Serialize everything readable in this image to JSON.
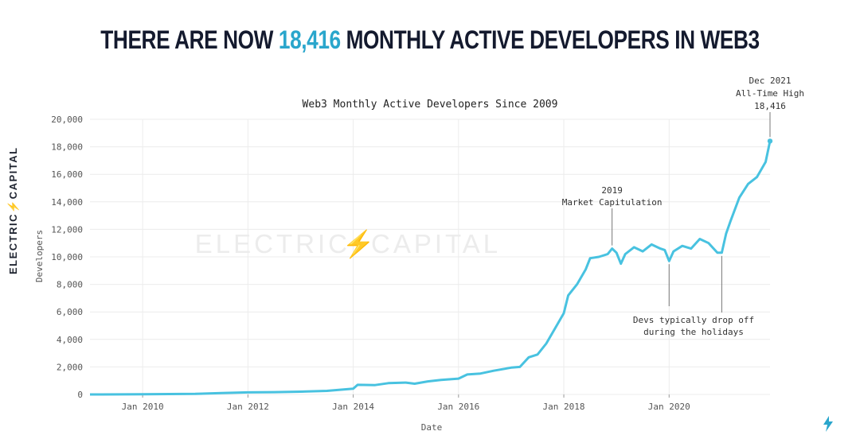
{
  "headline": {
    "prefix": "THERE ARE NOW",
    "highlight": "18,416",
    "suffix": "MONTHLY ACTIVE DEVELOPERS IN WEB3"
  },
  "brand": {
    "vertical_left": "ELECTRIC",
    "vertical_bolt": "⚡",
    "vertical_right": "CAPITAL",
    "watermark_left": "ELECTRIC",
    "watermark_bolt": "⚡",
    "watermark_right": "CAPITAL",
    "accent_color": "#2aa6cc"
  },
  "chart_data": {
    "type": "line",
    "title": "Web3 Monthly Active Developers Since 2009",
    "xlabel": "Date",
    "ylabel": "Developers",
    "ylim": [
      0,
      20000
    ],
    "xlim": [
      "2009-01",
      "2021-12"
    ],
    "yticks": [
      0,
      2000,
      4000,
      6000,
      8000,
      10000,
      12000,
      14000,
      16000,
      18000,
      20000
    ],
    "ytick_labels": [
      "0",
      "2,000",
      "4,000",
      "6,000",
      "8,000",
      "10,000",
      "12,000",
      "14,000",
      "16,000",
      "18,000",
      "20,000"
    ],
    "xticks": [
      "2010-01",
      "2012-01",
      "2014-01",
      "2016-01",
      "2018-01",
      "2020-01"
    ],
    "xtick_labels": [
      "Jan 2010",
      "Jan 2012",
      "Jan 2014",
      "Jan 2016",
      "Jan 2018",
      "Jan 2020"
    ],
    "grid": true,
    "line_color": "#48c2e0",
    "series": [
      {
        "points": [
          [
            "2009-01",
            0
          ],
          [
            "2010-01",
            10
          ],
          [
            "2011-01",
            40
          ],
          [
            "2011-07",
            100
          ],
          [
            "2012-01",
            150
          ],
          [
            "2012-07",
            170
          ],
          [
            "2013-01",
            200
          ],
          [
            "2013-07",
            260
          ],
          [
            "2014-01",
            420
          ],
          [
            "2014-02",
            700
          ],
          [
            "2014-06",
            680
          ],
          [
            "2014-09",
            820
          ],
          [
            "2015-01",
            860
          ],
          [
            "2015-03",
            780
          ],
          [
            "2015-06",
            950
          ],
          [
            "2015-09",
            1050
          ],
          [
            "2016-01",
            1150
          ],
          [
            "2016-03",
            1450
          ],
          [
            "2016-06",
            1520
          ],
          [
            "2016-09",
            1720
          ],
          [
            "2017-01",
            1950
          ],
          [
            "2017-03",
            2000
          ],
          [
            "2017-05",
            2700
          ],
          [
            "2017-07",
            2900
          ],
          [
            "2017-09",
            3700
          ],
          [
            "2017-11",
            4800
          ],
          [
            "2018-01",
            5900
          ],
          [
            "2018-02",
            7200
          ],
          [
            "2018-04",
            8000
          ],
          [
            "2018-06",
            9100
          ],
          [
            "2018-07",
            9900
          ],
          [
            "2018-09",
            10000
          ],
          [
            "2018-11",
            10200
          ],
          [
            "2018-12",
            10600
          ],
          [
            "2019-01",
            10300
          ],
          [
            "2019-02",
            9500
          ],
          [
            "2019-03",
            10200
          ],
          [
            "2019-05",
            10700
          ],
          [
            "2019-07",
            10400
          ],
          [
            "2019-09",
            10900
          ],
          [
            "2019-11",
            10600
          ],
          [
            "2019-12",
            10500
          ],
          [
            "2020-01",
            9700
          ],
          [
            "2020-02",
            10400
          ],
          [
            "2020-04",
            10800
          ],
          [
            "2020-06",
            10600
          ],
          [
            "2020-08",
            11300
          ],
          [
            "2020-10",
            11000
          ],
          [
            "2020-12",
            10300
          ],
          [
            "2021-01",
            10300
          ],
          [
            "2021-02",
            11700
          ],
          [
            "2021-03",
            12600
          ],
          [
            "2021-05",
            14300
          ],
          [
            "2021-07",
            15300
          ],
          [
            "2021-09",
            15800
          ],
          [
            "2021-11",
            16900
          ],
          [
            "2021-12",
            18416
          ]
        ]
      }
    ],
    "annotations": [
      {
        "lines": [
          "2019",
          "Market Capitulation"
        ],
        "x": "2018-12",
        "y": 10600
      },
      {
        "lines": [
          "Devs typically drop off",
          "during the holidays"
        ],
        "x": "2020-01",
        "y": 9700
      },
      {
        "lines": [
          "Devs typically drop off",
          "during the holidays"
        ],
        "x": "2021-01",
        "y": 10300
      },
      {
        "lines": [
          "Dec 2021",
          "All-Time High",
          "18,416"
        ],
        "x": "2021-12",
        "y": 18416
      }
    ]
  }
}
